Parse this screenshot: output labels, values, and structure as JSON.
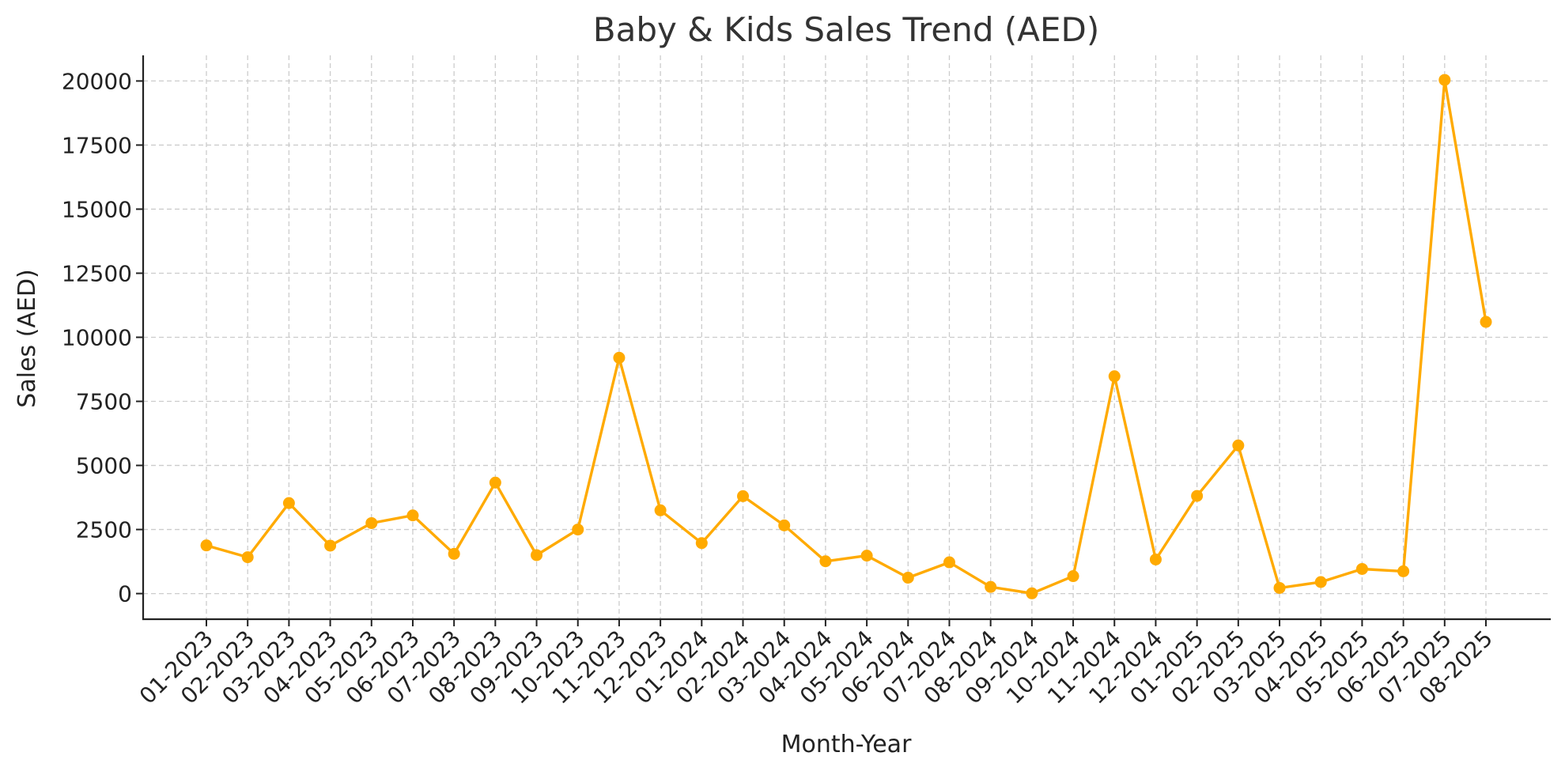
{
  "chart_data": {
    "type": "line",
    "title": "Baby & Kids Sales Trend (AED)",
    "xlabel": "Month-Year",
    "ylabel": "Sales (AED)",
    "categories": [
      "01-2023",
      "02-2023",
      "03-2023",
      "04-2023",
      "05-2023",
      "06-2023",
      "07-2023",
      "08-2023",
      "09-2023",
      "10-2023",
      "11-2023",
      "12-2023",
      "01-2024",
      "02-2024",
      "03-2024",
      "04-2024",
      "05-2024",
      "06-2024",
      "07-2024",
      "08-2024",
      "09-2024",
      "10-2024",
      "11-2024",
      "12-2024",
      "01-2025",
      "02-2025",
      "03-2025",
      "04-2025",
      "05-2025",
      "06-2025",
      "07-2025",
      "08-2025"
    ],
    "series": [
      {
        "values": [
          1880,
          1420,
          3530,
          1870,
          2750,
          3050,
          1550,
          4330,
          1500,
          2500,
          9200,
          3250,
          1970,
          3800,
          2660,
          1260,
          1480,
          620,
          1220,
          260,
          10,
          680,
          8480,
          1330,
          3810,
          5780,
          220,
          450,
          960,
          870,
          20040,
          10600
        ]
      }
    ],
    "yticks": [
      0,
      2500,
      5000,
      7500,
      10000,
      12500,
      15000,
      17500,
      20000
    ],
    "ylim": [
      -1000,
      21000
    ],
    "grid": true,
    "line_color": "#FFAA00"
  }
}
